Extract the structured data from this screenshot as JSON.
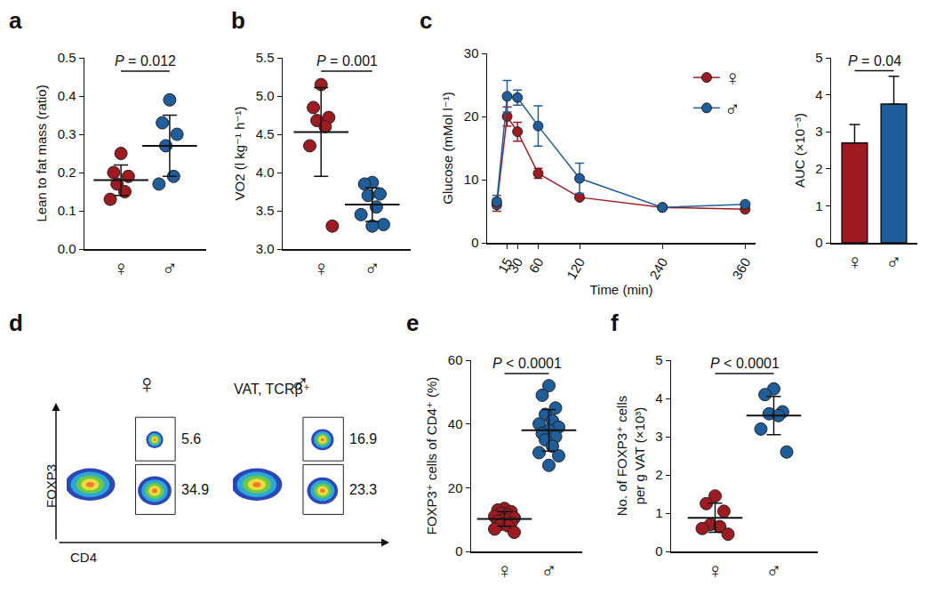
{
  "chart_data": [
    {
      "type": "strip",
      "panel": "a",
      "ylabel": "Lean to fat mass (ratio)",
      "categories": [
        "♀",
        "♂"
      ],
      "colors": [
        "#9e1b22",
        "#1f5e9a"
      ],
      "values": [
        [
          0.25,
          0.2,
          0.19,
          0.17,
          0.15,
          0.13
        ],
        [
          0.39,
          0.33,
          0.3,
          0.27,
          0.19,
          0.17
        ]
      ],
      "mean": [
        0.18,
        0.27
      ],
      "sd": [
        0.04,
        0.08
      ],
      "ylim": [
        0,
        0.5
      ],
      "yticks": [
        {
          "value": 0,
          "label": "0.0"
        },
        0.1,
        0.2,
        0.3,
        0.4,
        0.5
      ],
      "annotations": [
        "P = 0.012"
      ]
    },
    {
      "type": "strip",
      "panel": "b",
      "ylabel": "VO2 (l kg⁻¹ h⁻¹)",
      "categories": [
        "♀",
        "♂"
      ],
      "colors": [
        "#9e1b22",
        "#1f5e9a"
      ],
      "values": [
        [
          5.15,
          4.85,
          4.72,
          4.68,
          4.6,
          4.35,
          3.3
        ],
        [
          3.87,
          3.85,
          3.72,
          3.7,
          3.55,
          3.45,
          3.32,
          3.3
        ]
      ],
      "mean": [
        4.53,
        3.58
      ],
      "sd": [
        0.58,
        0.22
      ],
      "ylim": [
        3,
        5.5
      ],
      "yticks": [
        {
          "value": 3,
          "label": "3.0"
        },
        3.5,
        {
          "value": 4,
          "label": "4.0"
        },
        4.5,
        {
          "value": 5,
          "label": "5.0"
        },
        5.5
      ],
      "annotations": [
        "P = 0.001"
      ]
    },
    {
      "type": "line",
      "panel": "c",
      "xlabel": "Time (min)",
      "ylabel": "Glucose (mMol l⁻¹)",
      "x": [
        0,
        15,
        30,
        60,
        120,
        240,
        360
      ],
      "series": [
        {
          "name": "♀",
          "color": "#9e1b22",
          "values": [
            6.0,
            20.0,
            17.6,
            11.0,
            7.2,
            5.6,
            5.3
          ],
          "error": [
            1.0,
            1.5,
            1.5,
            0.8,
            0.3,
            0.3,
            0.3
          ]
        },
        {
          "name": "♂",
          "color": "#1f5e9a",
          "values": [
            6.5,
            23.2,
            23.0,
            18.5,
            10.2,
            5.6,
            6.1
          ],
          "error": [
            1.0,
            2.5,
            1.2,
            3.2,
            2.4,
            0.3,
            0.3
          ]
        }
      ],
      "xlim": [
        -14,
        375
      ],
      "xticks": [
        15,
        30,
        60,
        120,
        240,
        360
      ],
      "ylim": [
        0,
        30
      ],
      "yticks": [
        0,
        10,
        20,
        30
      ],
      "legend": "upper right",
      "marker": "circle"
    },
    {
      "type": "bar",
      "ylabel": "AUC (×10⁻³)",
      "categories": [
        "♀",
        "♂"
      ],
      "values": [
        2.7,
        3.75
      ],
      "error": [
        0.5,
        0.75
      ],
      "colors": [
        "#9e1b22",
        "#1f5e9a"
      ],
      "ylim": [
        0,
        5
      ],
      "yticks": [
        0,
        1,
        2,
        3,
        4,
        5
      ],
      "annotations": [
        "P = 0.04"
      ]
    },
    {
      "type": "flow",
      "panel": "d",
      "title": "VAT, TCRβ⁺",
      "xlabel": "CD4",
      "ylabel": "FOXP3",
      "tick_labels": false,
      "plots": [
        {
          "name": "♀",
          "gates": [
            5.6,
            34.9
          ]
        },
        {
          "name": "♂",
          "gates": [
            16.9,
            23.3
          ]
        }
      ]
    },
    {
      "type": "strip",
      "panel": "e",
      "ylabel": "FOXP3⁺ cells of CD4⁺ (%)",
      "categories": [
        "♀",
        "♂"
      ],
      "colors": [
        "#9e1b22",
        "#1f5e9a"
      ],
      "values": [
        [
          13.5,
          13,
          12.5,
          12,
          11.5,
          11,
          10.5,
          10,
          9.5,
          9,
          8.5,
          8,
          7,
          6
        ],
        [
          52,
          49,
          45,
          43,
          41,
          40,
          39,
          38,
          37,
          36,
          35,
          33,
          31,
          30,
          27
        ]
      ],
      "mean": [
        10.2,
        38.0
      ],
      "sd": [
        2.3,
        6.5
      ],
      "ylim": [
        0,
        60
      ],
      "yticks": [
        0,
        20,
        40,
        60
      ],
      "annotations": [
        "P < 0.0001"
      ]
    },
    {
      "type": "strip",
      "panel": "f",
      "ylabel": "No. of FOXP3⁺ cells\nper g VAT (×10³)",
      "categories": [
        "♀",
        "♂"
      ],
      "colors": [
        "#9e1b22",
        "#1f5e9a"
      ],
      "values": [
        [
          1.45,
          1.25,
          1.05,
          0.7,
          0.65,
          0.6,
          0.45
        ],
        [
          4.25,
          4.1,
          3.65,
          3.6,
          3.55,
          3.2,
          2.6
        ]
      ],
      "mean": [
        0.88,
        3.55
      ],
      "sd": [
        0.38,
        0.5
      ],
      "ylim": [
        0,
        5
      ],
      "yticks": [
        0,
        1,
        2,
        3,
        4,
        5
      ],
      "annotations": [
        "P < 0.0001"
      ]
    }
  ]
}
